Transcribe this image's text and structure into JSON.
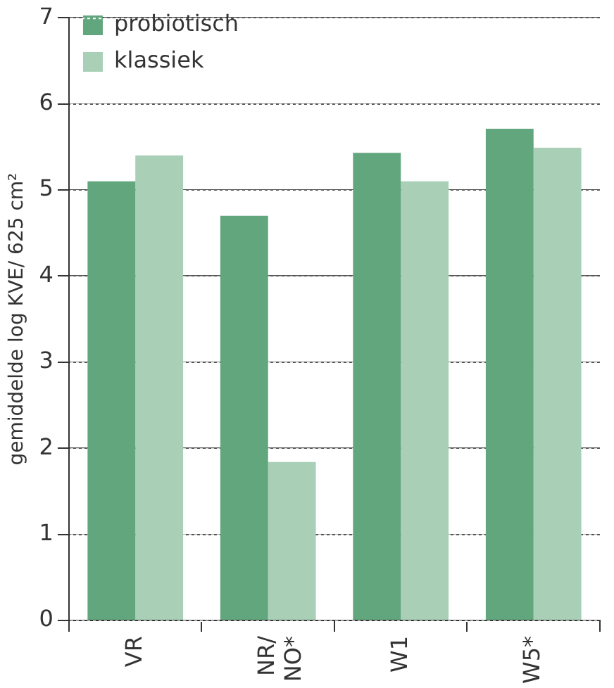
{
  "chart_data": {
    "type": "bar",
    "ylabel": "gemiddelde log KVE/ 625 cm²",
    "categories": [
      "VR",
      "NR/\nNO*",
      "W1",
      "W5*"
    ],
    "series": [
      {
        "name": "probiotisch",
        "color": "#62a67d",
        "values": [
          5.1,
          4.7,
          5.43,
          5.71
        ]
      },
      {
        "name": "klassiek",
        "color": "#a9cfb7",
        "values": [
          5.4,
          1.84,
          5.1,
          5.49
        ]
      }
    ],
    "ylim": [
      0,
      7
    ],
    "yticks": [
      0,
      1,
      2,
      3,
      4,
      5,
      6,
      7
    ],
    "grid": "y",
    "legend": "top left"
  }
}
